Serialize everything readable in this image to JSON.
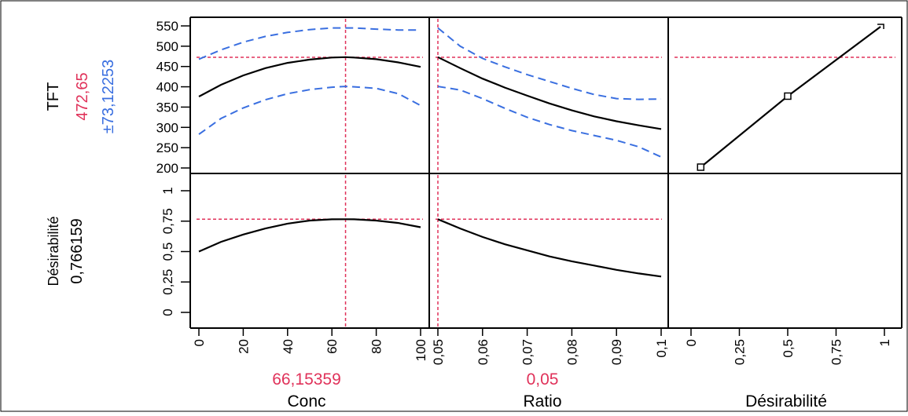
{
  "colors": {
    "response_line": "#000000",
    "confidence_band": "#3a6fe0",
    "optimum_marker": "#e0325a",
    "frame": "#000000"
  },
  "row_labels": [
    {
      "name": "TFT",
      "value": "472,65",
      "interval": "±73,12253"
    },
    {
      "name": "Désirabilité",
      "value": "0,766159"
    }
  ],
  "column_labels": [
    {
      "name": "Conc",
      "value": "66,15359"
    },
    {
      "name": "Ratio",
      "value": "0,05"
    },
    {
      "name": "Désirabilité",
      "value": ""
    }
  ],
  "chart_data": [
    {
      "type": "line",
      "row": "TFT",
      "column": "Conc",
      "xlim": [
        0,
        100
      ],
      "ylim": [
        200,
        550
      ],
      "x_ticks": [
        "0",
        "20",
        "40",
        "60",
        "80",
        "100"
      ],
      "y_ticks": [
        "200",
        "250",
        "300",
        "350",
        "400",
        "450",
        "500",
        "550"
      ],
      "x": [
        0,
        10,
        20,
        30,
        40,
        50,
        60,
        66.15,
        70,
        80,
        90,
        100
      ],
      "series": [
        {
          "role": "prediction",
          "values": [
            376,
            405,
            428,
            446,
            459,
            467,
            472,
            473,
            472,
            468,
            460,
            449
          ]
        },
        {
          "role": "upper",
          "values": [
            468,
            491,
            510,
            524,
            534,
            541,
            545,
            545,
            545,
            542,
            540,
            540
          ]
        },
        {
          "role": "lower",
          "values": [
            283,
            322,
            348,
            368,
            383,
            393,
            399,
            401,
            400,
            396,
            383,
            354
          ]
        }
      ],
      "reference": {
        "x": 66.15,
        "y": 472.65
      }
    },
    {
      "type": "line",
      "row": "TFT",
      "column": "Ratio",
      "xlim": [
        0.05,
        0.1
      ],
      "ylim": [
        200,
        550
      ],
      "x_ticks": [
        "0,05",
        "0,06",
        "0,07",
        "0,08",
        "0,09",
        "0,1"
      ],
      "x": [
        0.05,
        0.055,
        0.06,
        0.065,
        0.07,
        0.075,
        0.08,
        0.085,
        0.09,
        0.095,
        0.1
      ],
      "series": [
        {
          "role": "prediction",
          "values": [
            473,
            446,
            420,
            398,
            378,
            359,
            342,
            327,
            315,
            305,
            296
          ]
        },
        {
          "role": "upper",
          "values": [
            545,
            500,
            470,
            449,
            430,
            413,
            396,
            381,
            371,
            369,
            370
          ]
        },
        {
          "role": "lower",
          "values": [
            401,
            392,
            371,
            347,
            325,
            307,
            292,
            280,
            268,
            252,
            227
          ]
        }
      ],
      "reference": {
        "x": 0.05,
        "y": 472.65
      }
    },
    {
      "type": "line",
      "row": "TFT",
      "column": "Désirabilité",
      "xlim": [
        0,
        1
      ],
      "ylim": [
        200,
        550
      ],
      "x_ticks": [
        "0",
        "0,25",
        "0,5",
        "0,75",
        "1"
      ],
      "x": [
        0.05,
        0.5,
        0.98
      ],
      "series": [
        {
          "role": "desirability-function",
          "values": [
            202,
            377,
            548
          ]
        }
      ],
      "reference": {
        "y": 472.65
      }
    },
    {
      "type": "line",
      "row": "Désirabilité",
      "column": "Conc",
      "xlim": [
        0,
        100
      ],
      "ylim": [
        -0.05,
        1.05
      ],
      "y_ticks": [
        "0",
        "0,25",
        "0,5",
        "0,75",
        "1"
      ],
      "x": [
        0,
        10,
        20,
        30,
        40,
        50,
        60,
        66.15,
        70,
        80,
        90,
        100
      ],
      "series": [
        {
          "role": "prediction",
          "values": [
            0.5,
            0.58,
            0.64,
            0.69,
            0.73,
            0.755,
            0.765,
            0.766,
            0.765,
            0.755,
            0.735,
            0.7
          ]
        }
      ],
      "reference": {
        "x": 66.15,
        "y": 0.766159
      }
    },
    {
      "type": "line",
      "row": "Désirabilité",
      "column": "Ratio",
      "xlim": [
        0.05,
        0.1
      ],
      "ylim": [
        -0.05,
        1.05
      ],
      "x": [
        0.05,
        0.055,
        0.06,
        0.065,
        0.07,
        0.075,
        0.08,
        0.085,
        0.09,
        0.095,
        0.1
      ],
      "series": [
        {
          "role": "prediction",
          "values": [
            0.766,
            0.69,
            0.62,
            0.56,
            0.51,
            0.46,
            0.42,
            0.385,
            0.35,
            0.32,
            0.295
          ]
        }
      ],
      "reference": {
        "x": 0.05,
        "y": 0.766159
      }
    }
  ]
}
